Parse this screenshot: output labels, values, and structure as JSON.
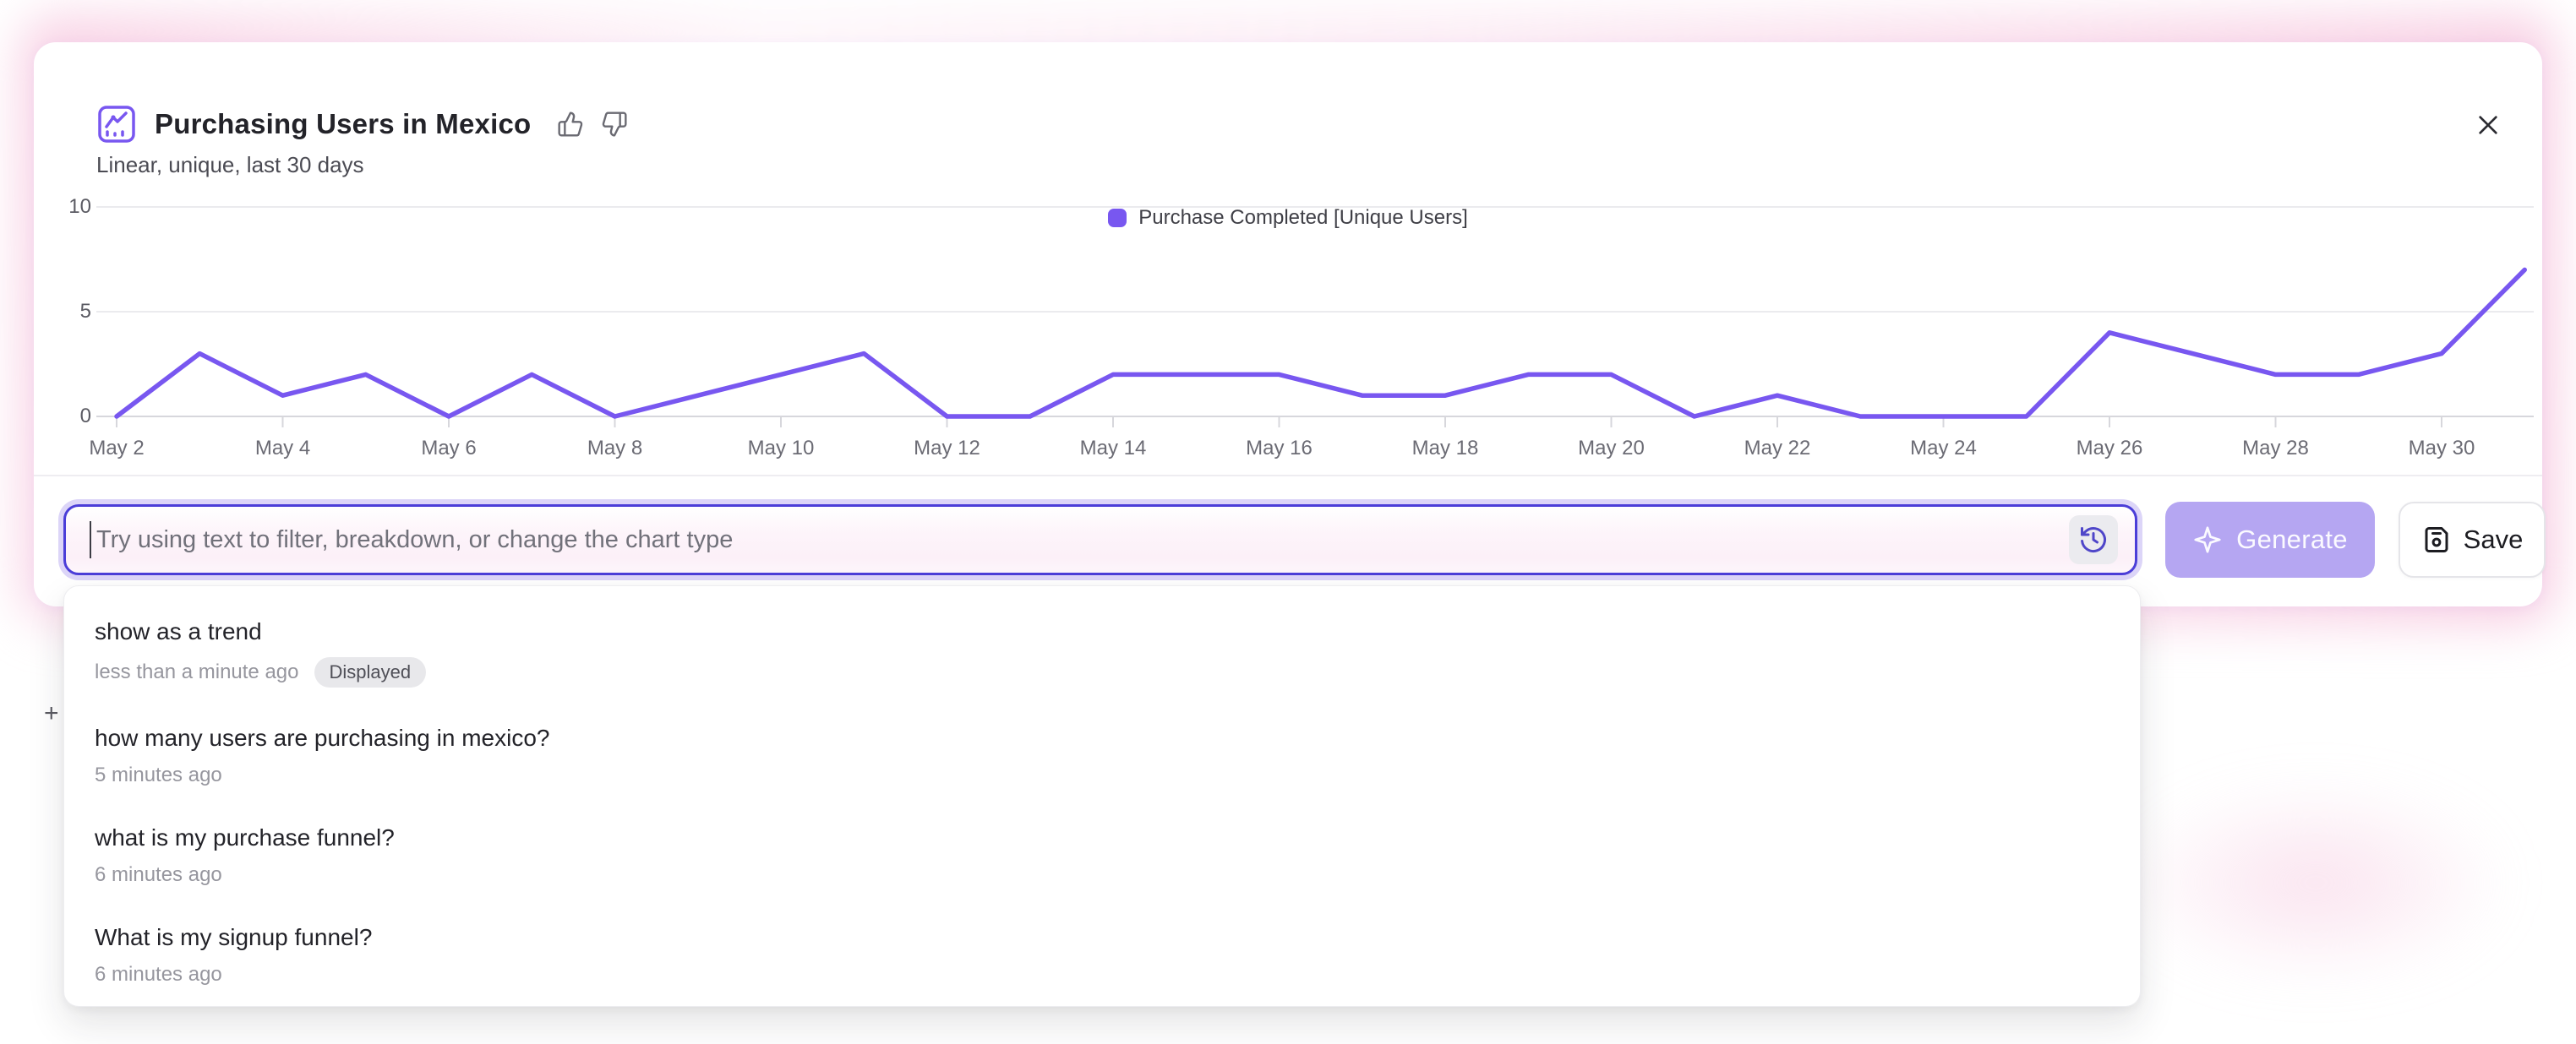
{
  "header": {
    "title": "Purchasing Users in Mexico",
    "subtitle": "Linear, unique, last 30 days"
  },
  "legend": {
    "label": "Purchase Completed [Unique Users]",
    "swatch_color": "#7857f0"
  },
  "chart_data": {
    "type": "line",
    "title": "Purchasing Users in Mexico",
    "x": [
      "May 2",
      "May 3",
      "May 4",
      "May 5",
      "May 6",
      "May 7",
      "May 8",
      "May 9",
      "May 10",
      "May 11",
      "May 12",
      "May 13",
      "May 14",
      "May 15",
      "May 16",
      "May 17",
      "May 18",
      "May 19",
      "May 20",
      "May 21",
      "May 22",
      "May 23",
      "May 24",
      "May 25",
      "May 26",
      "May 27",
      "May 28",
      "May 29",
      "May 30",
      "May 31"
    ],
    "series": [
      {
        "name": "Purchase Completed [Unique Users]",
        "color": "#7857f0",
        "values": [
          0,
          3,
          1,
          2,
          0,
          2,
          0,
          1,
          2,
          3,
          0,
          0,
          2,
          2,
          2,
          1,
          1,
          2,
          2,
          0,
          1,
          0,
          0,
          0,
          4,
          3,
          2,
          2,
          3,
          7
        ]
      }
    ],
    "ylim": [
      0,
      10
    ],
    "yticks": [
      0,
      5,
      10
    ],
    "xtick_labels": [
      "May 2",
      "May 4",
      "May 6",
      "May 8",
      "May 10",
      "May 12",
      "May 14",
      "May 16",
      "May 18",
      "May 20",
      "May 22",
      "May 24",
      "May 26",
      "May 28",
      "May 30"
    ],
    "legend_position": "top",
    "grid": true
  },
  "prompt_bar": {
    "placeholder": "Try using text to filter, breakdown, or change the chart type",
    "generate_label": "Generate",
    "save_label": "Save"
  },
  "history_dropdown": {
    "items": [
      {
        "query": "show as a trend",
        "time": "less than a minute ago",
        "badge": "Displayed"
      },
      {
        "query": "how many users are purchasing in mexico?",
        "time": "5 minutes ago",
        "badge": null
      },
      {
        "query": "what is my purchase funnel?",
        "time": "6 minutes ago",
        "badge": null
      },
      {
        "query": "What is my signup funnel?",
        "time": "6 minutes ago",
        "badge": null
      }
    ]
  },
  "misc": {
    "stray_plus": "+",
    "colors": {
      "accent_purple": "#7857f0",
      "input_border": "#4b3ed8",
      "input_halo": "#dcd5f8",
      "generate_bg": "#b5a6f2",
      "glow_pink": "#f6c1db",
      "grid_line": "#ebebee",
      "axis_line": "#d7d7dc"
    }
  }
}
